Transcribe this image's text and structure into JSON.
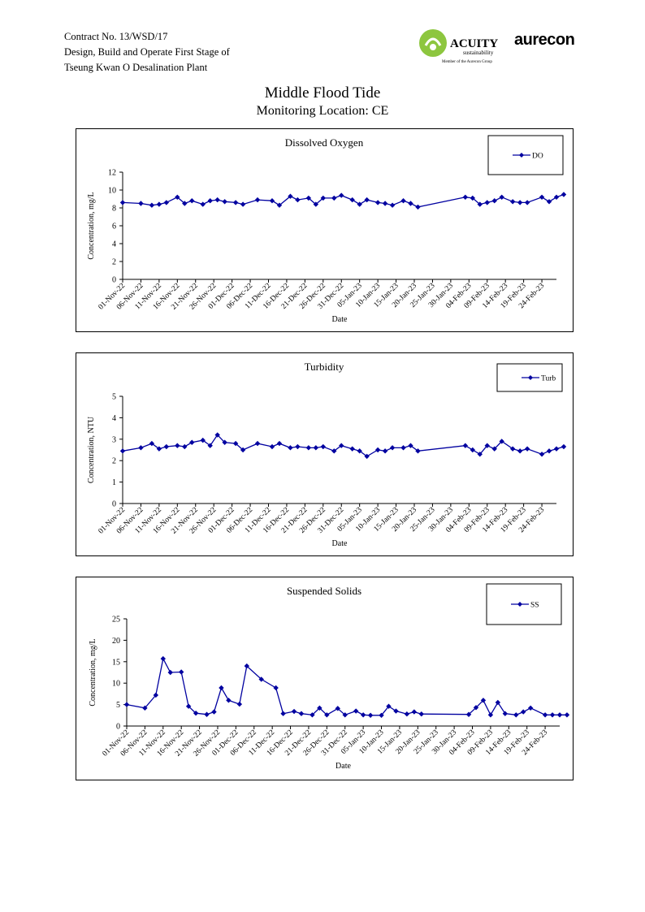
{
  "header": {
    "contract": "Contract No. 13/WSD/17",
    "line2": "Design, Build and Operate First Stage of",
    "line3": "Tseung Kwan O Desalination Plant"
  },
  "logos": {
    "acuity_name": "ACUITY",
    "acuity_sub": "sustainability",
    "acuity_member": "Member of the Aurecon Group",
    "aurecon": "aurecon",
    "acuity_color": "#8dc63f"
  },
  "page_title": "Middle Flood Tide",
  "page_subtitle": "Monitoring Location: CE",
  "chart_data": [
    {
      "type": "line",
      "title": "Dissolved Oxygen",
      "xlabel": "Date",
      "ylabel": "Concentration, mg/L",
      "ylim": [
        0,
        12
      ],
      "yticks": [
        0,
        2,
        4,
        6,
        8,
        10,
        12
      ],
      "xlim_days": [
        0,
        119
      ],
      "xtick_labels": [
        "01-Nov-22",
        "06-Nov-22",
        "11-Nov-22",
        "16-Nov-22",
        "21-Nov-22",
        "26-Nov-22",
        "01-Dec-22",
        "06-Dec-22",
        "11-Dec-22",
        "16-Dec-22",
        "21-Dec-22",
        "26-Dec-22",
        "31-Dec-22",
        "05-Jan-23",
        "10-Jan-23",
        "15-Jan-23",
        "20-Jan-23",
        "25-Jan-23",
        "30-Jan-23",
        "04-Feb-23",
        "09-Feb-23",
        "14-Feb-23",
        "19-Feb-23",
        "24-Feb-23"
      ],
      "legend_position": "top-right",
      "color": "#0000a0",
      "series": [
        {
          "name": "DO",
          "x": [
            "01-Nov-22",
            "06-Nov-22",
            "09-Nov-22",
            "11-Nov-22",
            "13-Nov-22",
            "16-Nov-22",
            "18-Nov-22",
            "20-Nov-22",
            "23-Nov-22",
            "25-Nov-22",
            "27-Nov-22",
            "29-Nov-22",
            "02-Dec-22",
            "04-Dec-22",
            "08-Dec-22",
            "12-Dec-22",
            "14-Dec-22",
            "17-Dec-22",
            "19-Dec-22",
            "22-Dec-22",
            "24-Dec-22",
            "26-Dec-22",
            "29-Dec-22",
            "31-Dec-22",
            "03-Jan-23",
            "05-Jan-23",
            "07-Jan-23",
            "10-Jan-23",
            "12-Jan-23",
            "14-Jan-23",
            "17-Jan-23",
            "19-Jan-23",
            "21-Jan-23",
            "03-Feb-23",
            "05-Feb-23",
            "07-Feb-23",
            "09-Feb-23",
            "11-Feb-23",
            "13-Feb-23",
            "16-Feb-23",
            "18-Feb-23",
            "20-Feb-23",
            "24-Feb-23",
            "26-Feb-23",
            "28-Feb-23",
            "02-Mar-23"
          ],
          "y": [
            8.6,
            8.5,
            8.3,
            8.4,
            8.6,
            9.2,
            8.5,
            8.8,
            8.4,
            8.8,
            8.9,
            8.7,
            8.6,
            8.4,
            8.9,
            8.8,
            8.3,
            9.3,
            8.9,
            9.1,
            8.4,
            9.1,
            9.1,
            9.4,
            8.9,
            8.4,
            8.9,
            8.6,
            8.5,
            8.3,
            8.8,
            8.5,
            8.1,
            9.2,
            9.1,
            8.4,
            8.6,
            8.8,
            9.2,
            8.7,
            8.6,
            8.6,
            9.2,
            8.7,
            9.2,
            9.5
          ]
        }
      ]
    },
    {
      "type": "line",
      "title": "Turbidity",
      "xlabel": "Date",
      "ylabel": "Concentration, NTU",
      "ylim": [
        0,
        5
      ],
      "yticks": [
        0,
        1,
        2,
        3,
        4,
        5
      ],
      "xlim_days": [
        0,
        119
      ],
      "xtick_labels": [
        "01-Nov-22",
        "06-Nov-22",
        "11-Nov-22",
        "16-Nov-22",
        "21-Nov-22",
        "26-Nov-22",
        "01-Dec-22",
        "06-Dec-22",
        "11-Dec-22",
        "16-Dec-22",
        "21-Dec-22",
        "26-Dec-22",
        "31-Dec-22",
        "05-Jan-23",
        "10-Jan-23",
        "15-Jan-23",
        "20-Jan-23",
        "25-Jan-23",
        "30-Jan-23",
        "04-Feb-23",
        "09-Feb-23",
        "14-Feb-23",
        "19-Feb-23",
        "24-Feb-23"
      ],
      "legend_position": "top-right",
      "color": "#0000a0",
      "series": [
        {
          "name": "Turb",
          "x": [
            "01-Nov-22",
            "06-Nov-22",
            "09-Nov-22",
            "11-Nov-22",
            "13-Nov-22",
            "16-Nov-22",
            "18-Nov-22",
            "20-Nov-22",
            "23-Nov-22",
            "25-Nov-22",
            "27-Nov-22",
            "29-Nov-22",
            "02-Dec-22",
            "04-Dec-22",
            "08-Dec-22",
            "12-Dec-22",
            "14-Dec-22",
            "17-Dec-22",
            "19-Dec-22",
            "22-Dec-22",
            "24-Dec-22",
            "26-Dec-22",
            "29-Dec-22",
            "31-Dec-22",
            "03-Jan-23",
            "05-Jan-23",
            "07-Jan-23",
            "10-Jan-23",
            "12-Jan-23",
            "14-Jan-23",
            "17-Jan-23",
            "19-Jan-23",
            "21-Jan-23",
            "03-Feb-23",
            "05-Feb-23",
            "07-Feb-23",
            "09-Feb-23",
            "11-Feb-23",
            "13-Feb-23",
            "16-Feb-23",
            "18-Feb-23",
            "20-Feb-23",
            "24-Feb-23",
            "26-Feb-23",
            "28-Feb-23",
            "02-Mar-23"
          ],
          "y": [
            2.45,
            2.6,
            2.8,
            2.55,
            2.65,
            2.7,
            2.65,
            2.85,
            2.95,
            2.7,
            3.2,
            2.85,
            2.8,
            2.5,
            2.8,
            2.65,
            2.8,
            2.6,
            2.65,
            2.6,
            2.6,
            2.65,
            2.45,
            2.7,
            2.55,
            2.45,
            2.2,
            2.5,
            2.45,
            2.6,
            2.6,
            2.7,
            2.45,
            2.7,
            2.5,
            2.3,
            2.7,
            2.55,
            2.9,
            2.55,
            2.45,
            2.55,
            2.3,
            2.45,
            2.55,
            2.65
          ]
        }
      ]
    },
    {
      "type": "line",
      "title": "Suspended Solids",
      "xlabel": "Date",
      "ylabel": "Concentration, mg/L",
      "ylim": [
        0,
        25
      ],
      "yticks": [
        0,
        5,
        10,
        15,
        20,
        25
      ],
      "xlim_days": [
        0,
        119
      ],
      "xtick_labels": [
        "01-Nov-22",
        "06-Nov-22",
        "11-Nov-22",
        "16-Nov-22",
        "21-Nov-22",
        "26-Nov-22",
        "01-Dec-22",
        "06-Dec-22",
        "11-Dec-22",
        "16-Dec-22",
        "21-Dec-22",
        "26-Dec-22",
        "31-Dec-22",
        "05-Jan-23",
        "10-Jan-23",
        "15-Jan-23",
        "20-Jan-23",
        "25-Jan-23",
        "30-Jan-23",
        "04-Feb-23",
        "09-Feb-23",
        "14-Feb-23",
        "19-Feb-23",
        "24-Feb-23"
      ],
      "legend_position": "top-right",
      "color": "#0000a0",
      "series": [
        {
          "name": "SS",
          "x": [
            "01-Nov-22",
            "06-Nov-22",
            "09-Nov-22",
            "11-Nov-22",
            "13-Nov-22",
            "16-Nov-22",
            "18-Nov-22",
            "20-Nov-22",
            "23-Nov-22",
            "25-Nov-22",
            "27-Nov-22",
            "29-Nov-22",
            "02-Dec-22",
            "04-Dec-22",
            "08-Dec-22",
            "12-Dec-22",
            "14-Dec-22",
            "17-Dec-22",
            "19-Dec-22",
            "22-Dec-22",
            "24-Dec-22",
            "26-Dec-22",
            "29-Dec-22",
            "31-Dec-22",
            "03-Jan-23",
            "05-Jan-23",
            "07-Jan-23",
            "10-Jan-23",
            "12-Jan-23",
            "14-Jan-23",
            "17-Jan-23",
            "19-Jan-23",
            "21-Jan-23",
            "03-Feb-23",
            "05-Feb-23",
            "07-Feb-23",
            "09-Feb-23",
            "11-Feb-23",
            "13-Feb-23",
            "16-Feb-23",
            "18-Feb-23",
            "20-Feb-23",
            "24-Feb-23",
            "26-Feb-23",
            "28-Feb-23",
            "02-Mar-23"
          ],
          "y": [
            5.0,
            4.2,
            7.2,
            15.7,
            12.5,
            12.6,
            4.6,
            3.0,
            2.7,
            3.3,
            8.9,
            6.0,
            5.1,
            14.0,
            10.9,
            8.9,
            2.9,
            3.4,
            2.9,
            2.6,
            4.2,
            2.6,
            4.1,
            2.6,
            3.5,
            2.6,
            2.5,
            2.5,
            4.6,
            3.5,
            2.8,
            3.3,
            2.8,
            2.7,
            4.3,
            6.0,
            2.6,
            5.5,
            2.9,
            2.6,
            3.3,
            4.2,
            2.6,
            2.6,
            2.6,
            2.6
          ]
        }
      ]
    }
  ]
}
